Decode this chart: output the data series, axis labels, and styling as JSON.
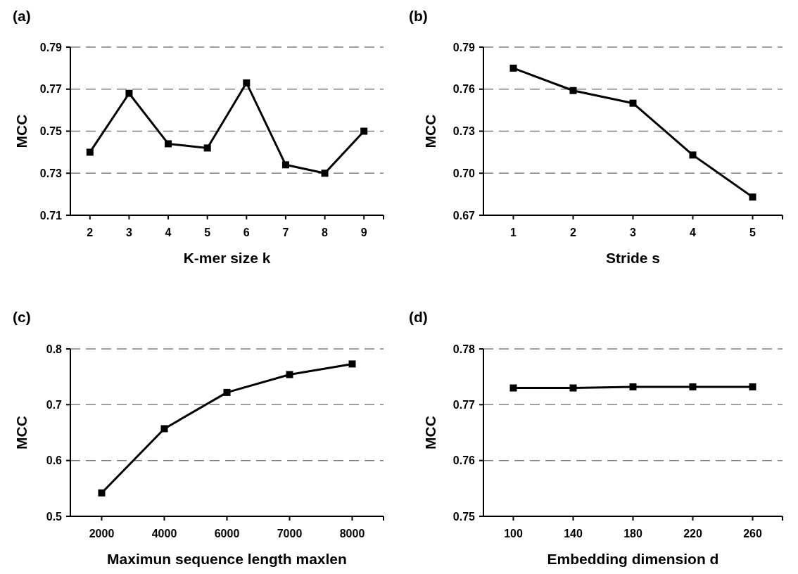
{
  "chart_data": [
    {
      "type": "line",
      "title": "(a)",
      "xlabel": "K-mer size k",
      "ylabel": "MCC",
      "categories": [
        "2",
        "3",
        "4",
        "5",
        "6",
        "7",
        "8",
        "9"
      ],
      "series": [
        {
          "color": "#000000",
          "values": [
            0.74,
            0.768,
            0.744,
            0.742,
            0.773,
            0.734,
            0.73,
            0.75
          ]
        }
      ],
      "ylim": [
        0.71,
        0.79
      ],
      "yticks": [
        0.71,
        0.73,
        0.75,
        0.77,
        0.79
      ],
      "grid": "y",
      "marker": "square",
      "line_style": "solid"
    },
    {
      "type": "line",
      "title": "(b)",
      "xlabel": "Stride s",
      "ylabel": "MCC",
      "categories": [
        "1",
        "2",
        "3",
        "4",
        "5"
      ],
      "series": [
        {
          "color": "#000000",
          "values": [
            0.775,
            0.759,
            0.75,
            0.713,
            0.683
          ]
        }
      ],
      "ylim": [
        0.67,
        0.79
      ],
      "yticks": [
        {
          "value": 0.67,
          "label": "0.67"
        },
        {
          "value": 0.7,
          "label": "0.70"
        },
        {
          "value": 0.73,
          "label": "0.73"
        },
        {
          "value": 0.76,
          "label": "0.76"
        },
        {
          "value": 0.79,
          "label": "0.79"
        }
      ],
      "grid": "y",
      "marker": "square",
      "line_style": "solid"
    },
    {
      "type": "line",
      "title": "(c)",
      "xlabel": "Maximun sequence length maxlen",
      "ylabel": "MCC",
      "categories": [
        "2000",
        "4000",
        "6000",
        "7000",
        "8000"
      ],
      "series": [
        {
          "color": "#000000",
          "values": [
            0.542,
            0.657,
            0.722,
            0.754,
            0.773
          ]
        }
      ],
      "ylim": [
        0.5,
        0.8
      ],
      "yticks": [
        0.5,
        0.6,
        0.7,
        0.8
      ],
      "grid": "y",
      "marker": "square",
      "line_style": "solid"
    },
    {
      "type": "line",
      "title": "(d)",
      "xlabel": "Embedding dimension d",
      "ylabel": "MCC",
      "categories": [
        "100",
        "140",
        "180",
        "220",
        "260"
      ],
      "series": [
        {
          "color": "#000000",
          "values": [
            0.773,
            0.773,
            0.7732,
            0.7732,
            0.7732
          ]
        }
      ],
      "ylim": [
        0.75,
        0.78
      ],
      "yticks": [
        0.75,
        0.76,
        0.77,
        0.78
      ],
      "grid": "y",
      "marker": "square",
      "line_style": "solid"
    }
  ]
}
